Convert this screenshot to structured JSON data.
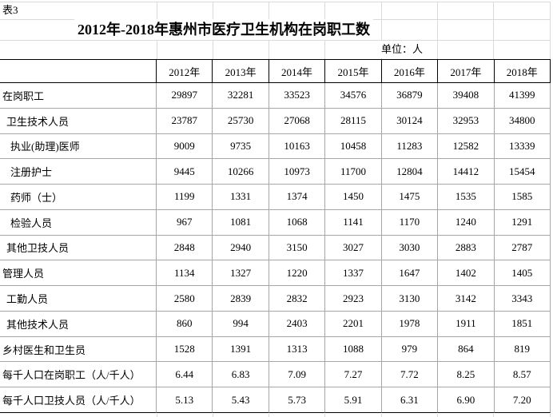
{
  "sheet": {
    "label": "表3",
    "title": "2012年-2018年惠州市医疗卫生机构在岗职工数",
    "unit": "单位：人"
  },
  "table": {
    "columns": [
      "2012年",
      "2013年",
      "2014年",
      "2015年",
      "2016年",
      "2017年",
      "2018年"
    ],
    "rows": [
      {
        "label": "在岗职工",
        "indent": 0,
        "values": [
          "29897",
          "32281",
          "33523",
          "34576",
          "36879",
          "39408",
          "41399"
        ]
      },
      {
        "label": "卫生技术人员",
        "indent": 1,
        "values": [
          "23787",
          "25730",
          "27068",
          "28115",
          "30124",
          "32953",
          "34800"
        ]
      },
      {
        "label": "执业(助理)医师",
        "indent": 2,
        "values": [
          "9009",
          "9735",
          "10163",
          "10458",
          "11283",
          "12582",
          "13339"
        ]
      },
      {
        "label": "注册护士",
        "indent": 2,
        "values": [
          "9445",
          "10266",
          "10973",
          "11700",
          "12804",
          "14412",
          "15454"
        ]
      },
      {
        "label": "药师（士）",
        "indent": 2,
        "values": [
          "1199",
          "1331",
          "1374",
          "1450",
          "1475",
          "1535",
          "1585"
        ]
      },
      {
        "label": "检验人员",
        "indent": 2,
        "values": [
          "967",
          "1081",
          "1068",
          "1141",
          "1170",
          "1240",
          "1291"
        ]
      },
      {
        "label": "其他卫技人员",
        "indent": 1,
        "values": [
          "2848",
          "2940",
          "3150",
          "3027",
          "3030",
          "2883",
          "2787"
        ]
      },
      {
        "label": "管理人员",
        "indent": 0,
        "values": [
          "1134",
          "1327",
          "1220",
          "1337",
          "1647",
          "1402",
          "1405"
        ]
      },
      {
        "label": "工勤人员",
        "indent": 1,
        "values": [
          "2580",
          "2839",
          "2832",
          "2923",
          "3130",
          "3142",
          "3343"
        ]
      },
      {
        "label": "其他技术人员",
        "indent": 1,
        "values": [
          "860",
          "994",
          "2403",
          "2201",
          "1978",
          "1911",
          "1851"
        ]
      },
      {
        "label": "乡村医生和卫生员",
        "indent": 0,
        "values": [
          "1528",
          "1391",
          "1313",
          "1088",
          "979",
          "864",
          "819"
        ]
      },
      {
        "label": "每千人口在岗职工（人/千人）",
        "indent": 0,
        "values": [
          "6.44",
          "6.83",
          "7.09",
          "7.27",
          "7.72",
          "8.25",
          "8.57"
        ]
      },
      {
        "label": "每千人口卫技人员（人/千人）",
        "indent": 0,
        "values": [
          "5.13",
          "5.43",
          "5.73",
          "5.91",
          "6.31",
          "6.90",
          "7.20"
        ]
      }
    ]
  },
  "colors": {
    "text": "#000000",
    "table_border": "#000000",
    "row_divider": "#a6a6a6",
    "sheet_gridline": "#d9d9d9",
    "background": "#ffffff"
  }
}
